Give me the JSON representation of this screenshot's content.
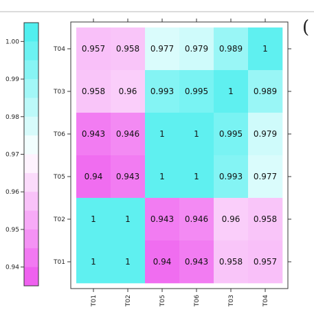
{
  "panel_mark": "(",
  "chart_data": {
    "type": "heatmap",
    "x_categories": [
      "T01",
      "T02",
      "T05",
      "T06",
      "T03",
      "T04"
    ],
    "y_categories": [
      "T04",
      "T03",
      "T06",
      "T05",
      "T02",
      "T01"
    ],
    "values": [
      [
        "0.957",
        "0.958",
        "0.977",
        "0.979",
        "0.989",
        "1"
      ],
      [
        "0.958",
        "0.96",
        "0.993",
        "0.995",
        "1",
        "0.989"
      ],
      [
        "0.943",
        "0.946",
        "1",
        "1",
        "0.995",
        "0.979"
      ],
      [
        "0.94",
        "0.943",
        "1",
        "1",
        "0.993",
        "0.977"
      ],
      [
        "1",
        "1",
        "0.943",
        "0.946",
        "0.96",
        "0.958"
      ],
      [
        "1",
        "1",
        "0.94",
        "0.943",
        "0.958",
        "0.957"
      ]
    ],
    "colorbar": {
      "min": 0.935,
      "max": 1.005,
      "ticks": [
        "1.00",
        "0.99",
        "0.98",
        "0.97",
        "0.96",
        "0.95",
        "0.94"
      ],
      "low_color": "#ee55ee",
      "mid_color": "#ffffff",
      "high_color": "#44eeee"
    },
    "title": "",
    "xlabel": "",
    "ylabel": ""
  }
}
